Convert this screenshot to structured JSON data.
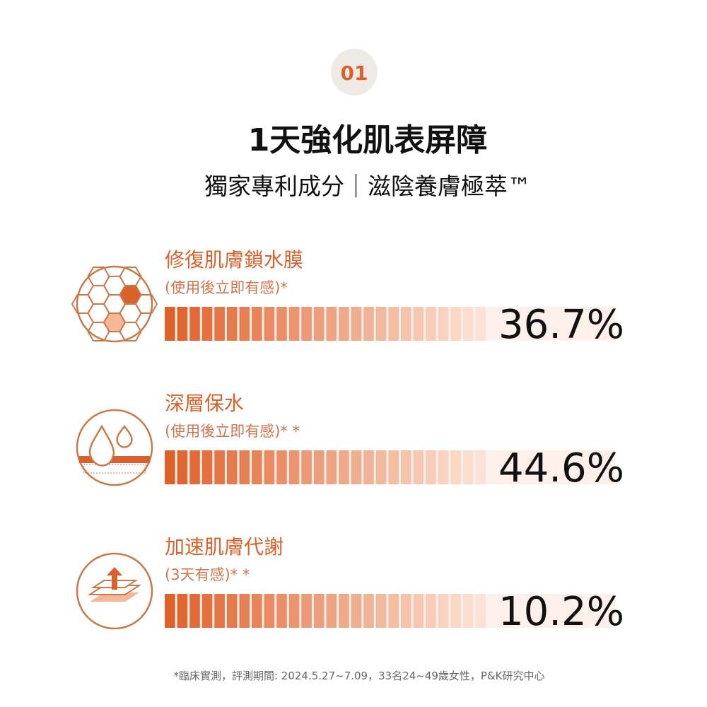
{
  "badge": "01",
  "header": {
    "title": "1天強化肌表屏障",
    "subtitle": "獨家專利成分｜滋陰養膚極萃™"
  },
  "items": [
    {
      "title": "修復肌膚鎖水膜",
      "note": "(使用後立即有感)*",
      "value": "36.7%"
    },
    {
      "title": "深層保水",
      "note": "(使用後立即有感)* *",
      "value": "44.6%"
    },
    {
      "title": "加速肌膚代謝",
      "note": "(3天有感)* *",
      "value": "10.2%"
    }
  ],
  "footnote": "*臨床實測，評測期間: 2024.5.27~7.09，33名24~49歲女性，P&K研究中心"
}
